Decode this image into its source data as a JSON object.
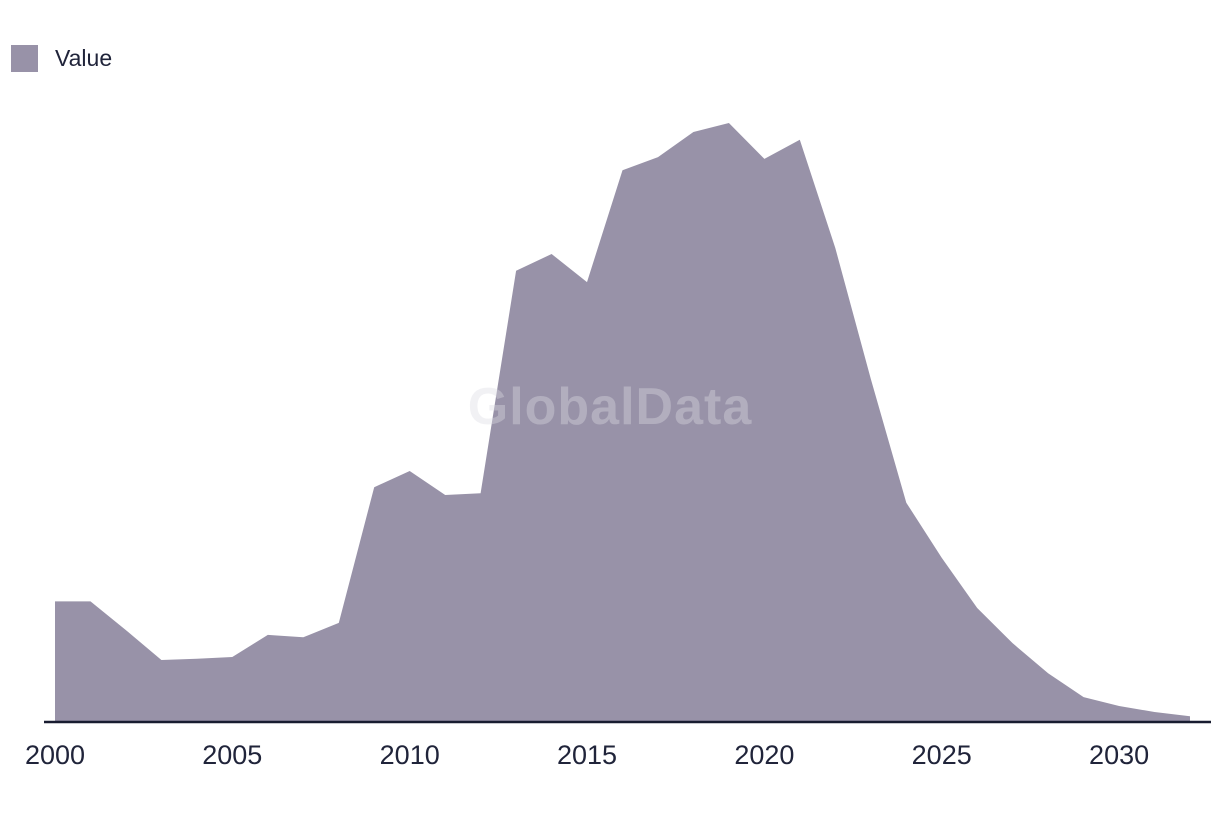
{
  "legend": {
    "label": "Value"
  },
  "watermark": {
    "text": "GlobalData"
  },
  "colors": {
    "area_fill": "#9892a8",
    "axis_line": "#181c30",
    "label_text": "#20243a",
    "watermark_text": "#dcdce4"
  },
  "chart_data": {
    "type": "area",
    "series": [
      {
        "name": "Value",
        "x": [
          2000,
          2001,
          2002,
          2003,
          2004,
          2005,
          2006,
          2007,
          2008,
          2009,
          2010,
          2011,
          2012,
          2013,
          2014,
          2015,
          2016,
          2017,
          2018,
          2019,
          2020,
          2021,
          2022,
          2023,
          2024,
          2025,
          2026,
          2027,
          2028,
          2029,
          2030,
          2031,
          2032
        ],
        "values": [
          20.0,
          20.0,
          15.2,
          10.2,
          10.4,
          10.7,
          14.4,
          14.0,
          16.4,
          39.1,
          41.8,
          37.8,
          38.1,
          75.3,
          78.1,
          73.4,
          92.1,
          94.3,
          98.5,
          100.0,
          94.0,
          97.2,
          79.1,
          57.2,
          36.5,
          27.3,
          18.9,
          13.0,
          8.0,
          4.0,
          2.5,
          1.5,
          0.8
        ]
      }
    ],
    "x_ticks": [
      2000,
      2005,
      2010,
      2015,
      2020,
      2025,
      2030
    ],
    "xlim": [
      2000,
      2032
    ],
    "ylim": [
      0,
      100
    ],
    "value_scale_note": "no y-axis shown; values estimated relative to peak (2019) = 100",
    "grid": false,
    "y_axis_visible": false,
    "legend_position": "top-left"
  }
}
